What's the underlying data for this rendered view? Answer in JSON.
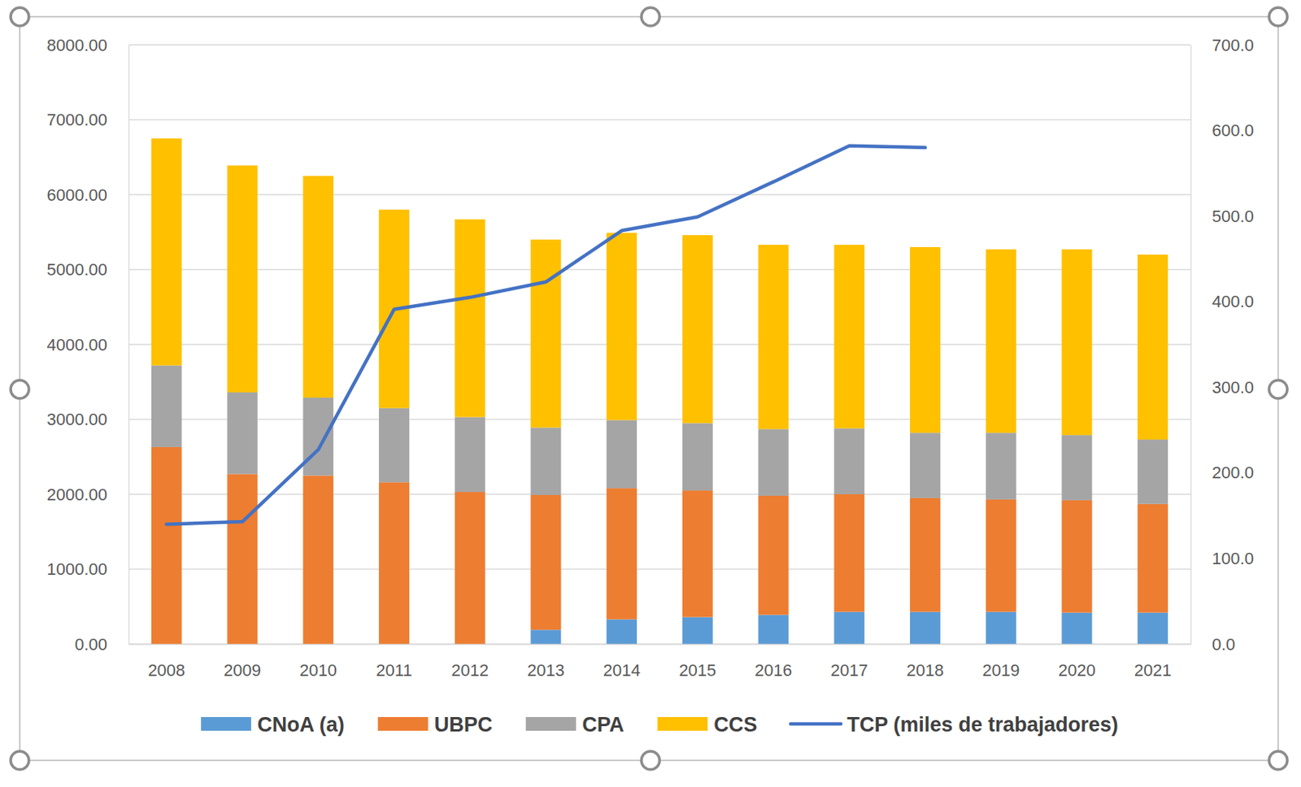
{
  "chart_data": {
    "type": "bar",
    "stacked": true,
    "grid": true,
    "legend": "bottom",
    "categories": [
      "2008",
      "2009",
      "2010",
      "2011",
      "2012",
      "2013",
      "2014",
      "2015",
      "2016",
      "2017",
      "2018",
      "2019",
      "2020",
      "2021"
    ],
    "ylim": [
      0,
      8000
    ],
    "yticks": [
      {
        "value": 0,
        "label": "0.00"
      },
      {
        "value": 1000,
        "label": "1000.00"
      },
      {
        "value": 2000,
        "label": "2000.00"
      },
      {
        "value": 3000,
        "label": "3000.00"
      },
      {
        "value": 4000,
        "label": "4000.00"
      },
      {
        "value": 5000,
        "label": "5000.00"
      },
      {
        "value": 6000,
        "label": "6000.00"
      },
      {
        "value": 7000,
        "label": "7000.00"
      },
      {
        "value": 8000,
        "label": "8000.00"
      }
    ],
    "y2lim": [
      0,
      700
    ],
    "y2ticks": [
      {
        "value": 0,
        "label": "0.0"
      },
      {
        "value": 100,
        "label": "100.0"
      },
      {
        "value": 200,
        "label": "200.0"
      },
      {
        "value": 300,
        "label": "300.0"
      },
      {
        "value": 400,
        "label": "400.0"
      },
      {
        "value": 500,
        "label": "500.0"
      },
      {
        "value": 600,
        "label": "600.0"
      },
      {
        "value": 700,
        "label": "700.0"
      }
    ],
    "series": [
      {
        "name": "CNoA (a)",
        "color": "#5b9bd5",
        "type": "bar",
        "values": [
          0,
          0,
          0,
          0,
          0,
          190,
          330,
          360,
          390,
          430,
          430,
          430,
          420,
          420
        ]
      },
      {
        "name": "UBPC",
        "color": "#ed7d31",
        "type": "bar",
        "values": [
          2630,
          2270,
          2250,
          2160,
          2030,
          1800,
          1750,
          1690,
          1590,
          1570,
          1520,
          1500,
          1500,
          1450
        ]
      },
      {
        "name": "CPA",
        "color": "#a5a5a5",
        "type": "bar",
        "values": [
          1090,
          1090,
          1040,
          990,
          1000,
          900,
          910,
          900,
          890,
          880,
          870,
          890,
          870,
          860
        ]
      },
      {
        "name": "CCS",
        "color": "#ffc000",
        "type": "bar",
        "values": [
          3030,
          3030,
          2960,
          2650,
          2640,
          2510,
          2500,
          2510,
          2460,
          2450,
          2480,
          2450,
          2480,
          2470
        ]
      },
      {
        "name": "TCP (miles de trabajadores)",
        "color": "#4472c4",
        "type": "line",
        "axis": "y2",
        "values": [
          140,
          143,
          227,
          391,
          405,
          423,
          483,
          499,
          540,
          582,
          580,
          null,
          null,
          null
        ]
      }
    ]
  }
}
